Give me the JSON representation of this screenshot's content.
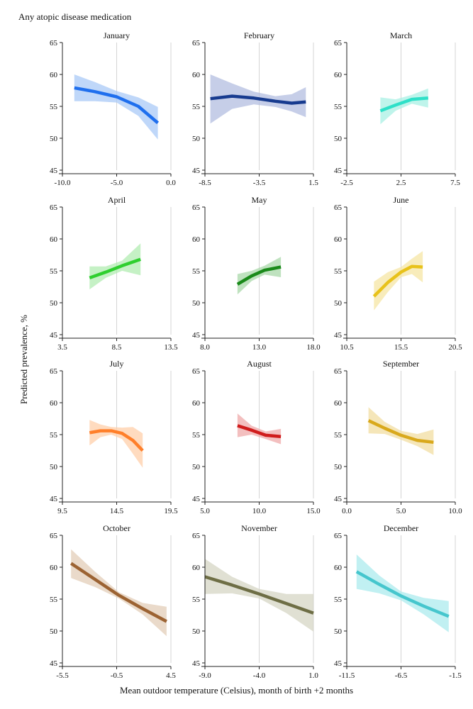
{
  "figure": {
    "title": "Any atopic disease medication",
    "ylabel": "Predicted prevalence, %",
    "xlabel": "Mean outdoor temperature (Celsius), month of birth +2 months"
  },
  "chart_data": [
    {
      "type": "line",
      "title": "January",
      "color": "#1f6fee",
      "band_color": "#a9c9f7",
      "xlim": [
        -10,
        0
      ],
      "xticks": [
        -10,
        -5,
        0
      ],
      "xtick_labels": [
        "-10.0",
        "-5.0",
        "0.0"
      ],
      "ylim": [
        45,
        65
      ],
      "yticks": [
        45,
        50,
        55,
        60,
        65
      ],
      "x": [
        -8.9,
        -7,
        -5,
        -3,
        -1.2
      ],
      "y": [
        57.9,
        57.3,
        56.5,
        55.0,
        52.4
      ],
      "lower": [
        55.8,
        55.8,
        55.6,
        53.5,
        49.8
      ],
      "upper": [
        60.0,
        58.8,
        57.4,
        56.4,
        54.9
      ]
    },
    {
      "type": "line",
      "title": "February",
      "color": "#173b8f",
      "band_color": "#b3bde0",
      "xlim": [
        -8.5,
        1.5
      ],
      "xticks": [
        -8.5,
        -3.5,
        1.5
      ],
      "xtick_labels": [
        "-8.5",
        "-3.5",
        "1.5"
      ],
      "ylim": [
        45,
        65
      ],
      "yticks": [
        45,
        50,
        55,
        60,
        65
      ],
      "x": [
        -8,
        -6,
        -4,
        -2,
        -0.5,
        0.8
      ],
      "y": [
        56.2,
        56.6,
        56.3,
        55.8,
        55.5,
        55.7
      ],
      "lower": [
        52.3,
        54.6,
        55.3,
        54.9,
        54.2,
        53.3
      ],
      "upper": [
        60.0,
        58.6,
        57.3,
        56.6,
        56.9,
        58.0
      ]
    },
    {
      "type": "line",
      "title": "March",
      "color": "#2ee0c8",
      "band_color": "#aaf0e4",
      "xlim": [
        -2.5,
        7.5
      ],
      "xticks": [
        -2.5,
        2.5,
        7.5
      ],
      "xtick_labels": [
        "-2.5",
        "2.5",
        "7.5"
      ],
      "ylim": [
        45,
        65
      ],
      "yticks": [
        45,
        50,
        55,
        60,
        65
      ],
      "x": [
        0.6,
        2,
        3.5,
        5
      ],
      "y": [
        54.3,
        55.2,
        56.1,
        56.3
      ],
      "lower": [
        52.2,
        54.3,
        55.4,
        54.8
      ],
      "upper": [
        56.4,
        56.1,
        56.8,
        57.8
      ]
    },
    {
      "type": "line",
      "title": "April",
      "color": "#2fcf2f",
      "band_color": "#b1ecb1",
      "xlim": [
        3.5,
        13.5
      ],
      "xticks": [
        3.5,
        8.5,
        13.5
      ],
      "xtick_labels": [
        "3.5",
        "8.5",
        "13.5"
      ],
      "ylim": [
        45,
        65
      ],
      "yticks": [
        45,
        50,
        55,
        60,
        65
      ],
      "x": [
        6,
        7.5,
        9,
        10.7
      ],
      "y": [
        53.9,
        54.8,
        55.8,
        56.8
      ],
      "lower": [
        52.1,
        53.9,
        55.0,
        54.3
      ],
      "upper": [
        55.7,
        55.7,
        56.6,
        59.3
      ]
    },
    {
      "type": "line",
      "title": "May",
      "color": "#1a8a1a",
      "band_color": "#a9d8a9",
      "xlim": [
        8,
        18
      ],
      "xticks": [
        8,
        13,
        18
      ],
      "xtick_labels": [
        "8.0",
        "13.0",
        "18.0"
      ],
      "ylim": [
        45,
        65
      ],
      "yticks": [
        45,
        50,
        55,
        60,
        65
      ],
      "x": [
        11,
        12.3,
        13.5,
        15
      ],
      "y": [
        52.9,
        54.2,
        55.1,
        55.6
      ],
      "lower": [
        51.3,
        53.4,
        54.4,
        54.0
      ],
      "upper": [
        54.5,
        55.0,
        55.8,
        57.2
      ]
    },
    {
      "type": "line",
      "title": "June",
      "color": "#e8c21a",
      "band_color": "#f6e5a4",
      "xlim": [
        10.5,
        20.5
      ],
      "xticks": [
        10.5,
        15.5,
        20.5
      ],
      "xtick_labels": [
        "10.5",
        "15.5",
        "20.5"
      ],
      "ylim": [
        45,
        65
      ],
      "yticks": [
        45,
        50,
        55,
        60,
        65
      ],
      "x": [
        13,
        14.3,
        15.5,
        16.5,
        17.5
      ],
      "y": [
        51.0,
        53.2,
        54.8,
        55.7,
        55.6
      ],
      "lower": [
        48.8,
        51.7,
        54.0,
        54.5,
        53.2
      ],
      "upper": [
        53.3,
        54.8,
        55.6,
        56.9,
        58.1
      ]
    },
    {
      "type": "line",
      "title": "July",
      "color": "#ff7f2a",
      "band_color": "#ffcfaa",
      "xlim": [
        9.5,
        19.5
      ],
      "xticks": [
        9.5,
        14.5,
        19.5
      ],
      "xtick_labels": [
        "9.5",
        "14.5",
        "19.5"
      ],
      "ylim": [
        45,
        65
      ],
      "yticks": [
        45,
        50,
        55,
        60,
        65
      ],
      "x": [
        12,
        13,
        14,
        15,
        16,
        16.9
      ],
      "y": [
        55.3,
        55.6,
        55.6,
        55.2,
        54.1,
        52.5
      ],
      "lower": [
        53.3,
        54.6,
        55.0,
        54.3,
        52.0,
        49.8
      ],
      "upper": [
        57.3,
        56.6,
        56.2,
        56.1,
        56.2,
        55.2
      ]
    },
    {
      "type": "line",
      "title": "August",
      "color": "#d01c1c",
      "band_color": "#efa9a9",
      "xlim": [
        5,
        15
      ],
      "xticks": [
        5,
        10,
        15
      ],
      "xtick_labels": [
        "5.0",
        "10.0",
        "15.0"
      ],
      "ylim": [
        45,
        65
      ],
      "yticks": [
        45,
        50,
        55,
        60,
        65
      ],
      "x": [
        8,
        9.3,
        10.6,
        12
      ],
      "y": [
        56.4,
        55.7,
        54.9,
        54.7
      ],
      "lower": [
        54.6,
        55.0,
        54.3,
        53.5
      ],
      "upper": [
        58.3,
        56.4,
        55.5,
        55.9
      ]
    },
    {
      "type": "line",
      "title": "September",
      "color": "#d9a91c",
      "band_color": "#f1dea2",
      "xlim": [
        0,
        10
      ],
      "xticks": [
        0,
        5,
        10
      ],
      "xtick_labels": [
        "0.0",
        "5.0",
        "10.0"
      ],
      "ylim": [
        45,
        65
      ],
      "yticks": [
        45,
        50,
        55,
        60,
        65
      ],
      "x": [
        2,
        3.5,
        5,
        6.5,
        8
      ],
      "y": [
        57.2,
        56.0,
        54.9,
        54.1,
        53.8
      ],
      "lower": [
        55.2,
        55.1,
        54.2,
        53.2,
        51.8
      ],
      "upper": [
        59.3,
        57.0,
        55.6,
        55.1,
        55.8
      ]
    },
    {
      "type": "line",
      "title": "October",
      "color": "#9c6333",
      "band_color": "#e3cdb8",
      "xlim": [
        -5.5,
        4.5
      ],
      "xticks": [
        -5.5,
        -0.5,
        4.5
      ],
      "xtick_labels": [
        "-5.5",
        "-0.5",
        "4.5"
      ],
      "ylim": [
        45,
        65
      ],
      "yticks": [
        45,
        50,
        55,
        60,
        65
      ],
      "x": [
        -4.7,
        -2.5,
        -0.3,
        1.9,
        4.1
      ],
      "y": [
        60.6,
        58.1,
        55.6,
        53.5,
        51.5
      ],
      "lower": [
        58.3,
        56.9,
        55.1,
        52.6,
        49.2
      ],
      "upper": [
        62.8,
        59.3,
        56.1,
        54.4,
        53.8
      ]
    },
    {
      "type": "line",
      "title": "November",
      "color": "#6e6e45",
      "band_color": "#d6d6c4",
      "xlim": [
        -9,
        1
      ],
      "xticks": [
        -9,
        -4,
        1
      ],
      "xtick_labels": [
        "-9.0",
        "-4.0",
        "1.0"
      ],
      "ylim": [
        45,
        65
      ],
      "yticks": [
        45,
        50,
        55,
        60,
        65
      ],
      "x": [
        -9,
        -6.5,
        -4,
        -1.5,
        1
      ],
      "y": [
        58.5,
        57.2,
        55.8,
        54.3,
        52.8
      ],
      "lower": [
        55.8,
        55.9,
        55.1,
        52.8,
        49.9
      ],
      "upper": [
        61.3,
        58.5,
        56.6,
        55.8,
        55.8
      ]
    },
    {
      "type": "line",
      "title": "December",
      "color": "#46c6cd",
      "band_color": "#acebee",
      "xlim": [
        -11.5,
        -1.5
      ],
      "xticks": [
        -11.5,
        -6.5,
        -1.5
      ],
      "xtick_labels": [
        "-11.5",
        "-6.5",
        "-1.5"
      ],
      "ylim": [
        45,
        65
      ],
      "yticks": [
        45,
        50,
        55,
        60,
        65
      ],
      "x": [
        -10.6,
        -8.5,
        -6.5,
        -4.4,
        -2.1
      ],
      "y": [
        59.3,
        57.3,
        55.5,
        53.9,
        52.3
      ],
      "lower": [
        56.6,
        55.9,
        54.8,
        52.6,
        49.8
      ],
      "upper": [
        62.0,
        58.7,
        56.2,
        55.2,
        54.7
      ]
    }
  ]
}
